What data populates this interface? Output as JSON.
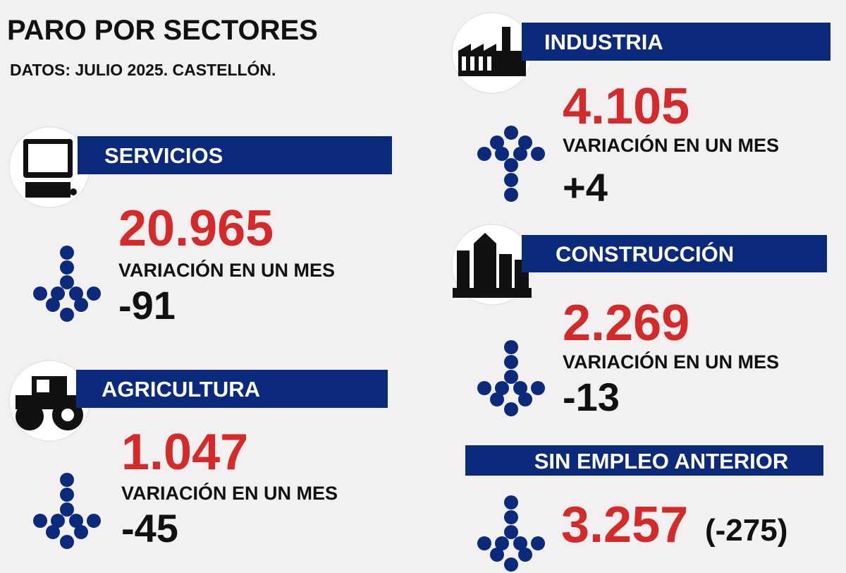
{
  "title": "PARO POR SECTORES",
  "subtitle": "DATOS: JULIO 2025. CASTELLÓN.",
  "sectors": [
    {
      "name": "SERVICIOS",
      "value": "20.965",
      "variation_label": "VARIACIÓN EN UN MES",
      "variation": "-91"
    },
    {
      "name": "AGRICULTURA",
      "value": "1.047",
      "variation_label": "VARIACIÓN EN UN MES",
      "variation": "-45"
    },
    {
      "name": "INDUSTRIA",
      "value": "4.105",
      "variation_label": "VARIACIÓN EN UN MES",
      "variation": "+4"
    },
    {
      "name": "CONSTRUCCIÓN",
      "value": "2.269",
      "variation_label": "VARIACIÓN EN UN MES",
      "variation": "-13"
    }
  ],
  "no_previous_job": {
    "name": "SIN EMPLEO ANTERIOR",
    "value": "3.257",
    "variation": "(-275)"
  }
}
